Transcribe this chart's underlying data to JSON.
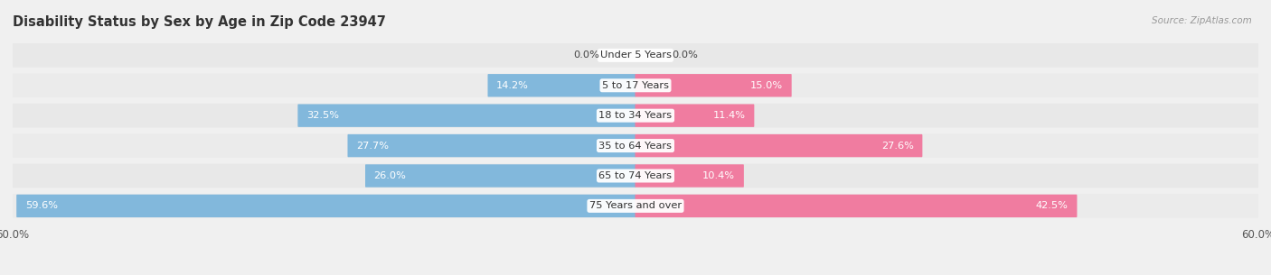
{
  "title": "Disability Status by Sex by Age in Zip Code 23947",
  "source": "Source: ZipAtlas.com",
  "categories": [
    "Under 5 Years",
    "5 to 17 Years",
    "18 to 34 Years",
    "35 to 64 Years",
    "65 to 74 Years",
    "75 Years and over"
  ],
  "male_values": [
    0.0,
    14.2,
    32.5,
    27.7,
    26.0,
    59.6
  ],
  "female_values": [
    0.0,
    15.0,
    11.4,
    27.6,
    10.4,
    42.5
  ],
  "male_color": "#82B8DC",
  "female_color": "#F07CA0",
  "bg_color": "#F0F0F0",
  "row_bg_color": "#FFFFFF",
  "row_alt_color": "#E8E8E8",
  "max_val": 60.0,
  "x_tick_left": "60.0%",
  "x_tick_right": "60.0%",
  "title_fontsize": 10.5,
  "label_fontsize": 8.5,
  "tick_fontsize": 8.5,
  "value_fontsize": 8.2,
  "cat_fontsize": 8.2
}
